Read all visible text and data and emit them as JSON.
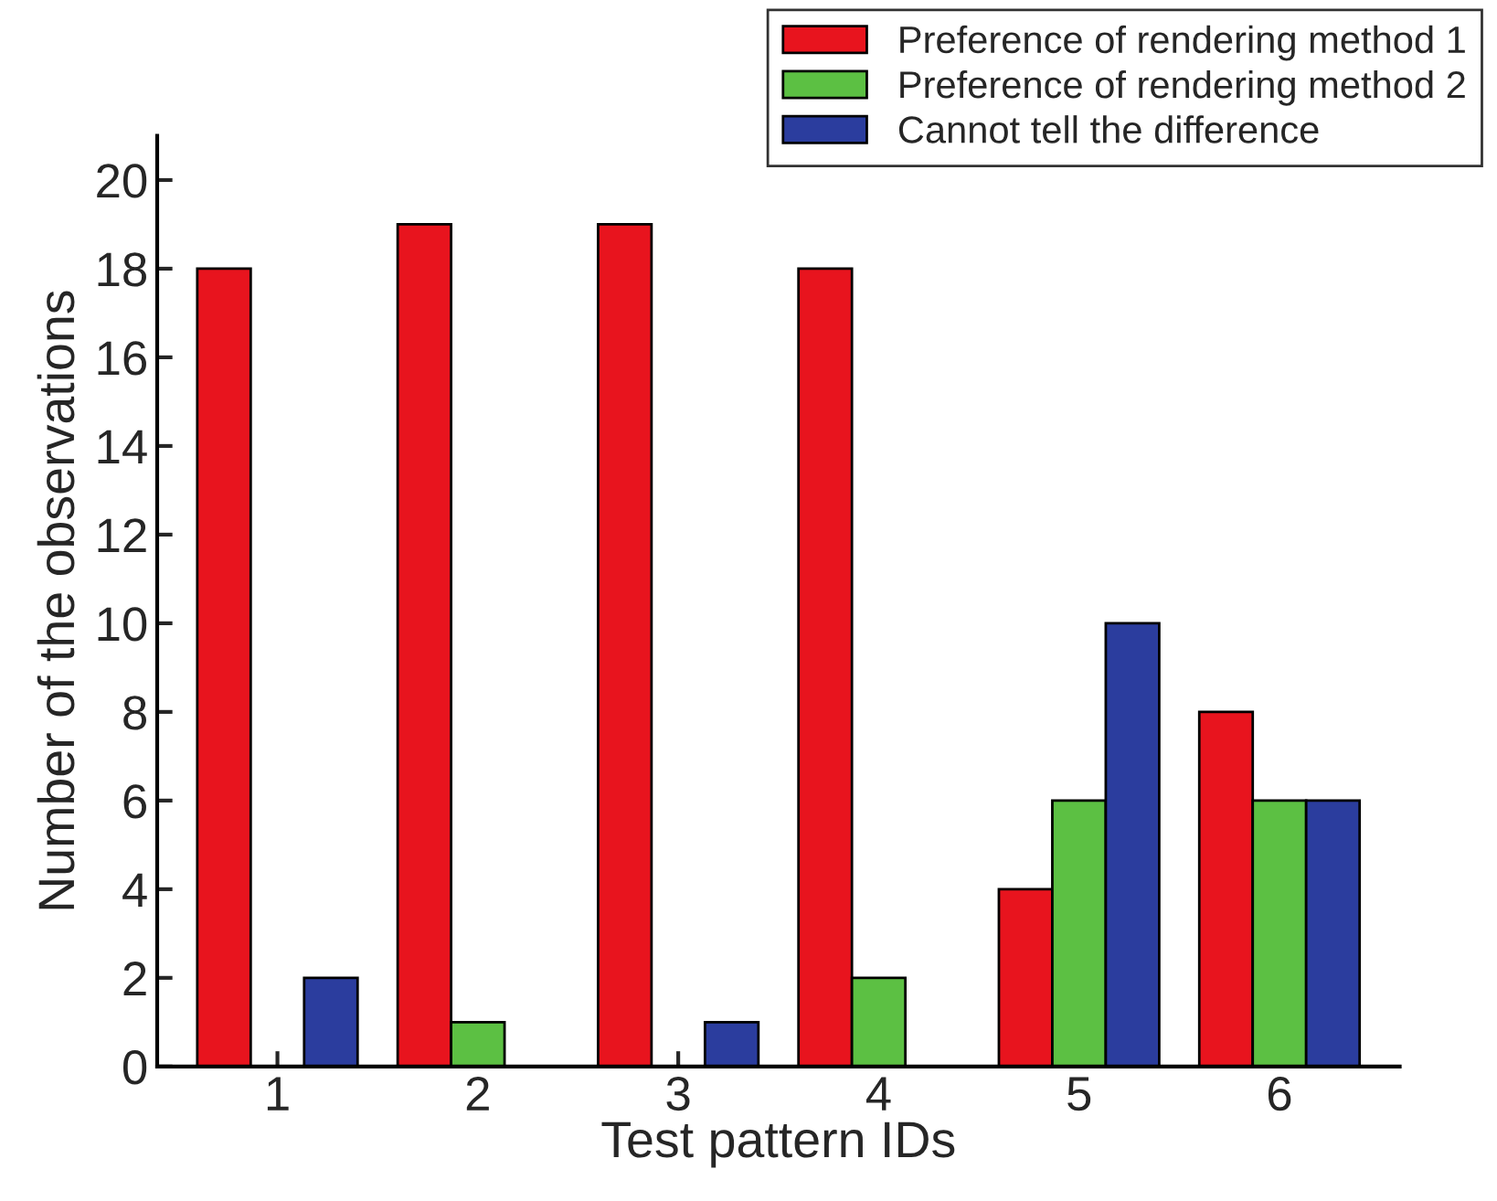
{
  "chart_data": {
    "type": "bar",
    "xlabel": "Test pattern IDs",
    "ylabel": "Number of the observations",
    "categories": [
      "1",
      "2",
      "3",
      "4",
      "5",
      "6"
    ],
    "series": [
      {
        "name": "Preference of rendering method 1",
        "color": "#e8141e",
        "values": [
          18,
          19,
          19,
          18,
          4,
          8
        ]
      },
      {
        "name": "Preference of rendering method 2",
        "color": "#5cc043",
        "values": [
          0,
          1,
          0,
          2,
          6,
          6
        ]
      },
      {
        "name": "Cannot tell the difference",
        "color": "#2b3d9e",
        "values": [
          2,
          0,
          1,
          0,
          10,
          6
        ]
      }
    ],
    "ylim": [
      0,
      21
    ],
    "yticks": [
      0,
      2,
      4,
      6,
      8,
      10,
      12,
      14,
      16,
      18,
      20
    ],
    "grid": false,
    "legend": "top right"
  }
}
